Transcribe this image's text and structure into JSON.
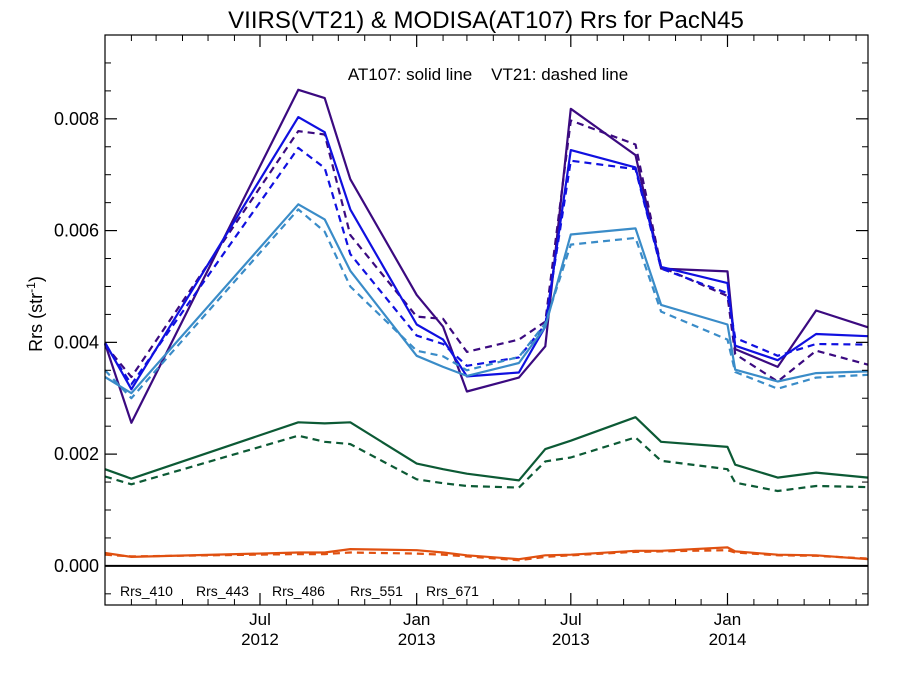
{
  "chart_data": {
    "type": "line",
    "title": "VIIRS(VT21) & MODISA(AT107)  Rrs for PacN45",
    "annotation": "AT107: solid line    VT21: dashed line",
    "ylabel": "Rrs (str",
    "ylabel_sup": "-1",
    "ylabel_tail": ")",
    "ylim": [
      -0.0007,
      0.0095
    ],
    "xlim": [
      "2012-01-01",
      "2014-06-15"
    ],
    "grid": false,
    "zero_line": true,
    "legend_placement": "bottom-left",
    "yticks": [
      {
        "value": 0.0,
        "label": "0.000"
      },
      {
        "value": 0.002,
        "label": "0.002"
      },
      {
        "value": 0.004,
        "label": "0.004"
      },
      {
        "value": 0.006,
        "label": "0.006"
      },
      {
        "value": 0.008,
        "label": "0.008"
      }
    ],
    "xticks": [
      {
        "date": "2012-07-01",
        "month": "Jul",
        "year": "2012"
      },
      {
        "date": "2013-01-01",
        "month": "Jan",
        "year": "2013"
      },
      {
        "date": "2013-07-01",
        "month": "Jul",
        "year": "2013"
      },
      {
        "date": "2014-01-01",
        "month": "Jan",
        "year": "2014"
      }
    ],
    "x": [
      "2012-01-01",
      "2012-02-01",
      "2012-08-15",
      "2012-09-15",
      "2012-10-15",
      "2013-01-01",
      "2013-02-01",
      "2013-03-01",
      "2013-05-01",
      "2013-06-01",
      "2013-07-01",
      "2013-09-15",
      "2013-10-15",
      "2014-01-01",
      "2014-01-10",
      "2014-03-01",
      "2014-04-15",
      "2014-06-15"
    ],
    "series": [
      {
        "name": "Rrs_410",
        "color": "#3b0a80",
        "style": "solid",
        "values": [
          0.00398,
          0.00256,
          0.00852,
          0.00837,
          0.00692,
          0.00485,
          0.00428,
          0.00312,
          0.00337,
          0.00393,
          0.00818,
          0.00735,
          0.00532,
          0.00527,
          0.00388,
          0.00356,
          0.00457,
          0.00427
        ]
      },
      {
        "name": "Rrs_410",
        "color": "#3b0a80",
        "style": "dashed",
        "values": [
          0.00395,
          0.00338,
          0.00778,
          0.00772,
          0.00592,
          0.00446,
          0.00442,
          0.00383,
          0.00405,
          0.00437,
          0.00797,
          0.00754,
          0.00535,
          0.00483,
          0.00379,
          0.0033,
          0.00385,
          0.0036
        ]
      },
      {
        "name": "Rrs_443",
        "color": "#1010e0",
        "style": "solid",
        "values": [
          0.004,
          0.00316,
          0.00803,
          0.00776,
          0.00638,
          0.00432,
          0.00405,
          0.00339,
          0.00346,
          0.00428,
          0.00744,
          0.00713,
          0.00535,
          0.00506,
          0.00394,
          0.00368,
          0.00415,
          0.00411
        ]
      },
      {
        "name": "Rrs_443",
        "color": "#1010e0",
        "style": "dashed",
        "values": [
          0.00397,
          0.00325,
          0.00748,
          0.00712,
          0.00558,
          0.00412,
          0.00397,
          0.00358,
          0.00373,
          0.00432,
          0.00725,
          0.0071,
          0.00532,
          0.00488,
          0.00408,
          0.00376,
          0.00397,
          0.00396
        ]
      },
      {
        "name": "Rrs_486",
        "color": "#3a8cc8",
        "style": "solid",
        "values": [
          0.00338,
          0.00309,
          0.00647,
          0.0062,
          0.00528,
          0.00376,
          0.00356,
          0.0034,
          0.00363,
          0.00428,
          0.00593,
          0.00604,
          0.00467,
          0.00432,
          0.00351,
          0.0033,
          0.00345,
          0.00348
        ]
      },
      {
        "name": "Rrs_486",
        "color": "#3a8cc8",
        "style": "dashed",
        "values": [
          0.0035,
          0.003,
          0.00638,
          0.00598,
          0.005,
          0.00385,
          0.00375,
          0.0035,
          0.00374,
          0.00434,
          0.00575,
          0.00587,
          0.00455,
          0.00405,
          0.00347,
          0.00317,
          0.00337,
          0.00342
        ]
      },
      {
        "name": "Rrs_551",
        "color": "#0c5a35",
        "style": "solid",
        "values": [
          0.00173,
          0.00156,
          0.00257,
          0.00255,
          0.00257,
          0.00183,
          0.00173,
          0.00165,
          0.00153,
          0.00209,
          0.00224,
          0.00266,
          0.00222,
          0.00213,
          0.00181,
          0.00158,
          0.00167,
          0.00158
        ]
      },
      {
        "name": "Rrs_551",
        "color": "#0c5a35",
        "style": "dashed",
        "values": [
          0.0016,
          0.00146,
          0.00233,
          0.00222,
          0.00218,
          0.00155,
          0.00148,
          0.00143,
          0.0014,
          0.00187,
          0.00194,
          0.0023,
          0.00188,
          0.00173,
          0.00149,
          0.00134,
          0.00143,
          0.00141
        ]
      },
      {
        "name": "Rrs_671",
        "color": "#e05010",
        "style": "solid",
        "values": [
          0.00023,
          0.00016,
          0.00024,
          0.00024,
          0.0003,
          0.00028,
          0.00024,
          0.00019,
          0.00012,
          0.00019,
          0.0002,
          0.00027,
          0.00027,
          0.00033,
          0.00026,
          0.0002,
          0.00019,
          0.00012
        ]
      },
      {
        "name": "Rrs_671",
        "color": "#e05010",
        "style": "dashed",
        "values": [
          0.0002,
          0.00017,
          0.00021,
          0.00021,
          0.00024,
          0.00022,
          0.0002,
          0.00017,
          0.0001,
          0.00016,
          0.00019,
          0.00025,
          0.00026,
          0.00028,
          0.00024,
          0.00019,
          0.00018,
          0.00013
        ]
      }
    ],
    "legend": [
      {
        "label": "Rrs_410",
        "color": "#3b0a80"
      },
      {
        "label": "Rrs_443",
        "color": "#1010e0"
      },
      {
        "label": "Rrs_486",
        "color": "#3a8cc8"
      },
      {
        "label": "Rrs_551",
        "color": "#0c5a35"
      },
      {
        "label": "Rrs_671",
        "color": "#e05010"
      }
    ]
  }
}
